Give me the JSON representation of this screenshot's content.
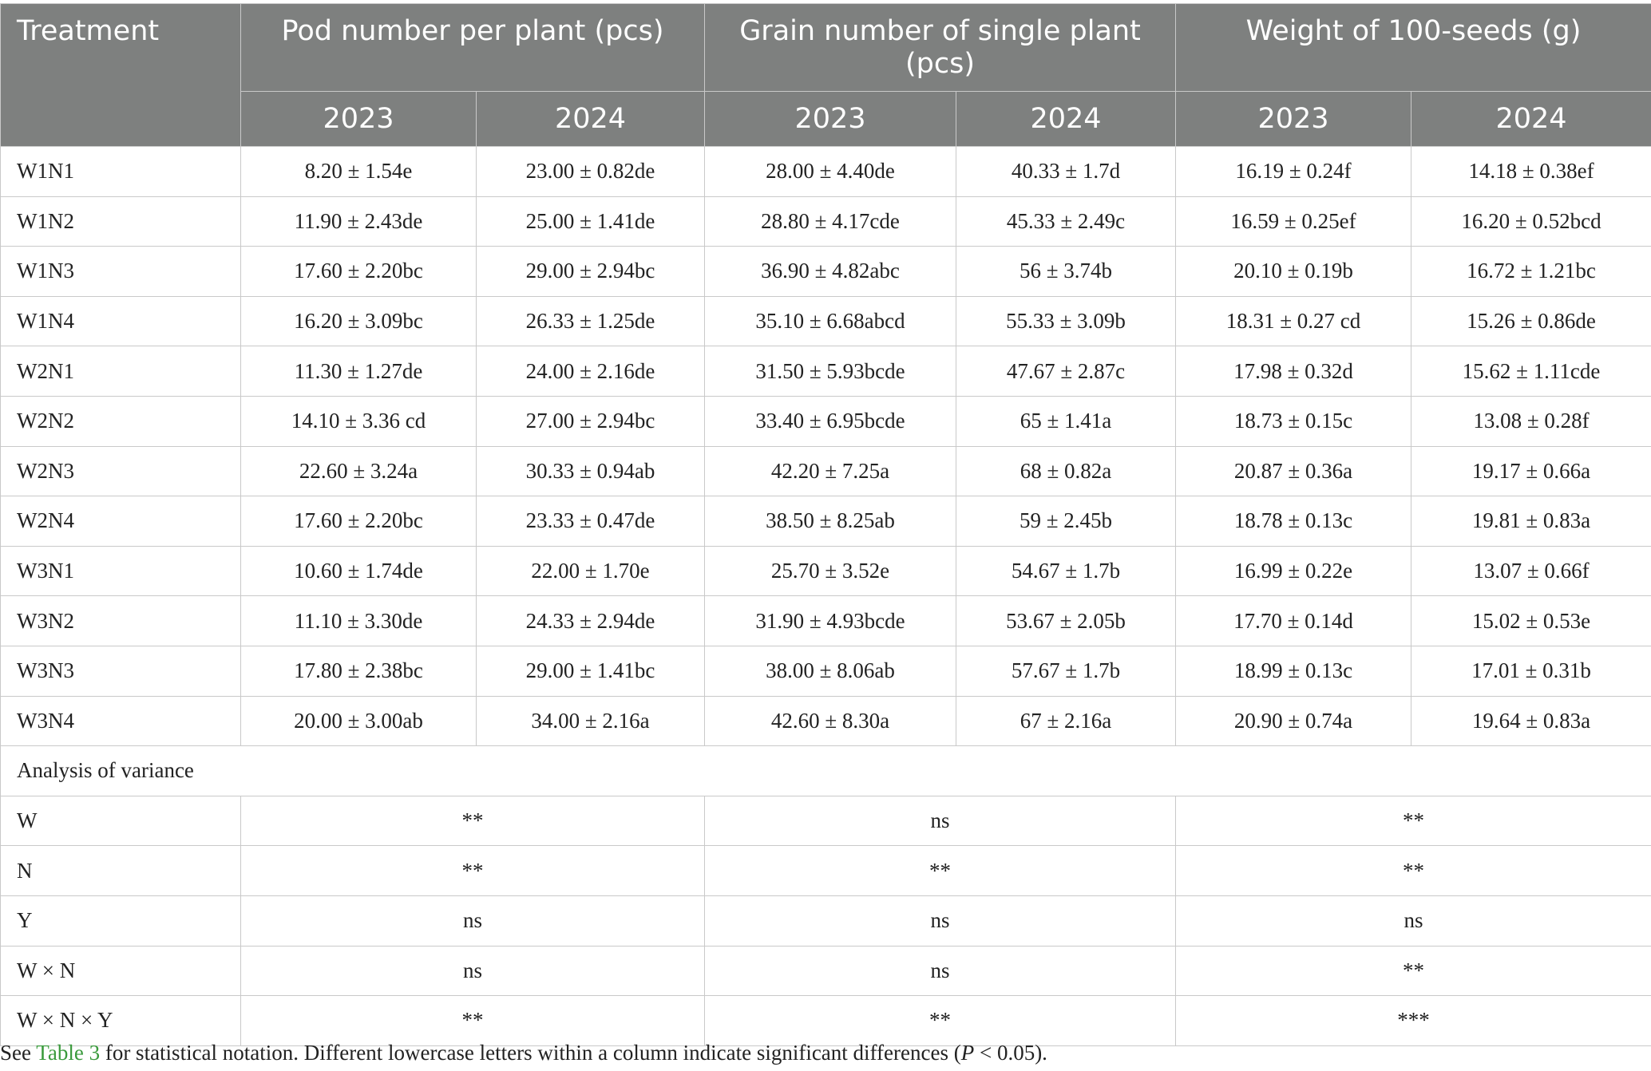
{
  "table": {
    "headers": {
      "treatment": "Treatment",
      "pod": "Pod number per plant (pcs)",
      "grain": "Grain number of single plant (pcs)",
      "weight": "Weight of 100-seeds (g)",
      "years": [
        "2023",
        "2024",
        "2023",
        "2024",
        "2023",
        "2024"
      ]
    },
    "rows": [
      {
        "treatment": "W1N1",
        "values": [
          "8.20 ± 1.54e",
          "23.00 ± 0.82de",
          "28.00 ± 4.40de",
          "40.33 ± 1.7d",
          "16.19 ± 0.24f",
          "14.18 ± 0.38ef"
        ]
      },
      {
        "treatment": "W1N2",
        "values": [
          "11.90 ± 2.43de",
          "25.00 ± 1.41de",
          "28.80 ± 4.17cde",
          "45.33 ± 2.49c",
          "16.59 ± 0.25ef",
          "16.20 ± 0.52bcd"
        ]
      },
      {
        "treatment": "W1N3",
        "values": [
          "17.60 ± 2.20bc",
          "29.00 ± 2.94bc",
          "36.90 ± 4.82abc",
          "56 ± 3.74b",
          "20.10 ± 0.19b",
          "16.72 ± 1.21bc"
        ]
      },
      {
        "treatment": "W1N4",
        "values": [
          "16.20 ± 3.09bc",
          "26.33 ± 1.25de",
          "35.10 ± 6.68abcd",
          "55.33 ± 3.09b",
          "18.31 ± 0.27 cd",
          "15.26 ± 0.86de"
        ]
      },
      {
        "treatment": "W2N1",
        "values": [
          "11.30 ± 1.27de",
          "24.00 ± 2.16de",
          "31.50 ± 5.93bcde",
          "47.67 ± 2.87c",
          "17.98 ± 0.32d",
          "15.62 ± 1.11cde"
        ]
      },
      {
        "treatment": "W2N2",
        "values": [
          "14.10 ± 3.36 cd",
          "27.00 ± 2.94bc",
          "33.40 ± 6.95bcde",
          "65 ± 1.41a",
          "18.73 ± 0.15c",
          "13.08 ± 0.28f"
        ]
      },
      {
        "treatment": "W2N3",
        "values": [
          "22.60 ± 3.24a",
          "30.33 ± 0.94ab",
          "42.20 ± 7.25a",
          "68 ± 0.82a",
          "20.87 ± 0.36a",
          "19.17 ± 0.66a"
        ]
      },
      {
        "treatment": "W2N4",
        "values": [
          "17.60 ± 2.20bc",
          "23.33 ± 0.47de",
          "38.50 ± 8.25ab",
          "59 ± 2.45b",
          "18.78 ± 0.13c",
          "19.81 ± 0.83a"
        ]
      },
      {
        "treatment": "W3N1",
        "values": [
          "10.60 ± 1.74de",
          "22.00 ± 1.70e",
          "25.70 ± 3.52e",
          "54.67 ± 1.7b",
          "16.99 ± 0.22e",
          "13.07 ± 0.66f"
        ]
      },
      {
        "treatment": "W3N2",
        "values": [
          "11.10 ± 3.30de",
          "24.33 ± 2.94de",
          "31.90 ± 4.93bcde",
          "53.67 ± 2.05b",
          "17.70 ± 0.14d",
          "15.02 ± 0.53e"
        ]
      },
      {
        "treatment": "W3N3",
        "values": [
          "17.80 ± 2.38bc",
          "29.00 ± 1.41bc",
          "38.00 ± 8.06ab",
          "57.67 ± 1.7b",
          "18.99 ± 0.13c",
          "17.01 ± 0.31b"
        ]
      },
      {
        "treatment": "W3N4",
        "values": [
          "20.00 ± 3.00ab",
          "34.00 ± 2.16a",
          "42.60 ± 8.30a",
          "67 ± 2.16a",
          "20.90 ± 0.74a",
          "19.64 ± 0.83a"
        ]
      }
    ],
    "anova_label": "Analysis of variance",
    "anova": [
      {
        "factor": "W",
        "values": [
          "**",
          "ns",
          "**"
        ]
      },
      {
        "factor": "N",
        "values": [
          "**",
          "**",
          "**"
        ]
      },
      {
        "factor": "Y",
        "values": [
          "ns",
          "ns",
          "ns"
        ]
      },
      {
        "factor": "W × N",
        "values": [
          "ns",
          "ns",
          "**"
        ]
      },
      {
        "factor": "W × N × Y",
        "values": [
          "**",
          "**",
          "***"
        ]
      }
    ]
  },
  "footnote": {
    "prefix": "See ",
    "link": "Table 3",
    "middle": " for statistical notation. Different lowercase letters within a column indicate significant differences (",
    "p": "P",
    "suffix": " < 0.05)."
  }
}
